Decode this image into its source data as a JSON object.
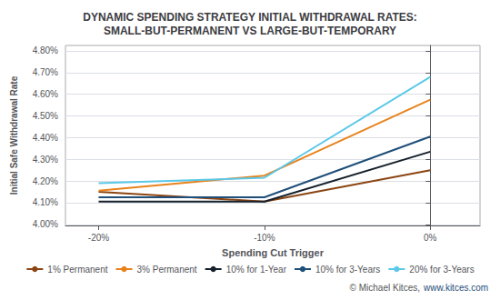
{
  "chart_data": {
    "type": "line",
    "title": "DYNAMIC SPENDING STRATEGY INITIAL WITHDRAWAL RATES:\nSMALL-BUT-PERMANENT VS LARGE-BUT-TEMPORARY",
    "x_label": "Spending Cut Trigger",
    "y_label": "Initial Safe Withdrawal Rate",
    "x": [
      -20,
      -10,
      0
    ],
    "series": [
      {
        "name": "1% Permanent",
        "color": "#8B4513",
        "values": [
          4.15,
          4.105,
          4.25
        ]
      },
      {
        "name": "3% Permanent",
        "color": "#E8821A",
        "values": [
          4.155,
          4.225,
          4.575
        ]
      },
      {
        "name": "10% for 1-Year",
        "color": "#15202b",
        "values": [
          4.105,
          4.105,
          4.335
        ]
      },
      {
        "name": "10% for 3-Years",
        "color": "#1F4E79",
        "values": [
          4.125,
          4.125,
          4.405
        ]
      },
      {
        "name": "20% for 3-Years",
        "color": "#5BC8E8",
        "values": [
          4.19,
          4.215,
          4.68
        ]
      }
    ],
    "xlim": [
      -22,
      3
    ],
    "xticks": [
      {
        "value": -20,
        "label": "-20%"
      },
      {
        "value": -10,
        "label": "-10%"
      },
      {
        "value": 0,
        "label": "0%"
      }
    ],
    "ylim": [
      3.995,
      4.825
    ],
    "yticks": [
      {
        "value": 4.0,
        "label": "4.00%"
      },
      {
        "value": 4.1,
        "label": "4.10%"
      },
      {
        "value": 4.2,
        "label": "4.20%"
      },
      {
        "value": 4.3,
        "label": "4.30%"
      },
      {
        "value": 4.4,
        "label": "4.40%"
      },
      {
        "value": 4.5,
        "label": "4.50%"
      },
      {
        "value": 4.6,
        "label": "4.60%"
      },
      {
        "value": 4.7,
        "label": "4.70%"
      },
      {
        "value": 4.8,
        "label": "4.80%"
      }
    ],
    "grid": true,
    "legend": "bottom",
    "annotations": [
      "© Michael Kitces,",
      "www.kitces.com"
    ]
  }
}
